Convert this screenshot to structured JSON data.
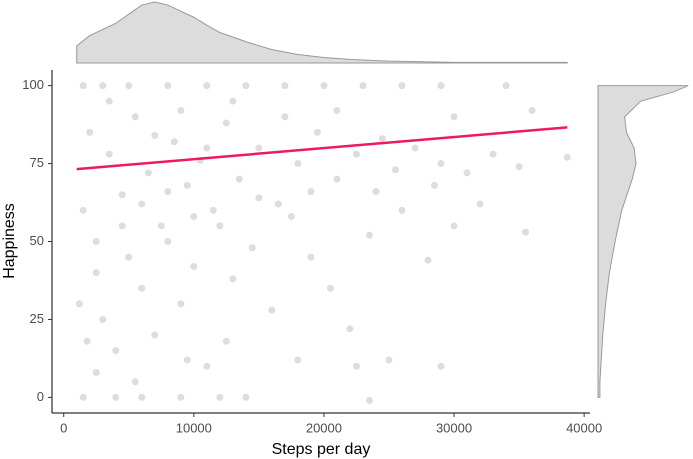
{
  "chart_data": {
    "type": "scatter",
    "xlabel": "Steps per day",
    "ylabel": "Happiness",
    "xlim": [
      -900,
      40450
    ],
    "ylim": [
      -5,
      105
    ],
    "xticks": [
      0,
      10000,
      20000,
      30000,
      40000
    ],
    "yticks": [
      0,
      25,
      50,
      75,
      100
    ],
    "point_color": "#cfcfcf",
    "x": [
      1500,
      3000,
      5000,
      8000,
      11000,
      14000,
      17000,
      20000,
      23000,
      26000,
      29000,
      34000,
      1500,
      4000,
      6000,
      9000,
      12000,
      14000,
      23500,
      2000,
      3500,
      4500,
      5500,
      6500,
      7500,
      8500,
      9500,
      10500,
      11500,
      12500,
      13500,
      15000,
      16500,
      18000,
      19500,
      21000,
      22500,
      24000,
      25500,
      27000,
      28500,
      30000,
      31000,
      33000,
      35000,
      36000,
      38700,
      2500,
      3000,
      4000,
      5000,
      6000,
      7000,
      8000,
      9000,
      10000,
      11000,
      12000,
      13000,
      14500,
      16000,
      17500,
      19000,
      20500,
      22000,
      23500,
      26000,
      28000,
      30000,
      35500,
      1500,
      2500,
      3500,
      4500,
      6000,
      7000,
      8000,
      9000,
      10000,
      11000,
      13000,
      15000,
      17000,
      19000,
      21000,
      24500,
      29000,
      32000,
      1200,
      1800,
      2500,
      5500,
      9500,
      12500,
      18000,
      22500,
      25000,
      29000
    ],
    "y": [
      100,
      100,
      100,
      100,
      100,
      100,
      100,
      100,
      100,
      100,
      100,
      100,
      0,
      0,
      0,
      0,
      0,
      0,
      -1,
      85,
      78,
      65,
      90,
      72,
      55,
      82,
      68,
      76,
      60,
      88,
      70,
      80,
      62,
      75,
      85,
      70,
      78,
      66,
      73,
      80,
      68,
      90,
      72,
      78,
      74,
      92,
      77,
      40,
      25,
      15,
      45,
      35,
      20,
      50,
      30,
      42,
      10,
      55,
      38,
      48,
      28,
      58,
      45,
      35,
      22,
      52,
      60,
      44,
      55,
      53,
      60,
      50,
      95,
      55,
      62,
      84,
      66,
      92,
      58,
      80,
      95,
      64,
      90,
      66,
      92,
      83,
      75,
      62,
      30,
      18,
      8,
      5,
      12,
      18,
      12,
      10,
      12,
      10
    ],
    "trend": {
      "color": "#ee1a5a",
      "x": [
        1000,
        38700
      ],
      "y": [
        73.2,
        86.6
      ]
    },
    "marginal_color": "#dcdcdc",
    "marginal_x": {
      "x": [
        1000,
        2000,
        3000,
        4000,
        5000,
        6000,
        7000,
        8000,
        9000,
        10000,
        11000,
        12000,
        14000,
        16000,
        18000,
        20000,
        22000,
        25000,
        30000,
        38700
      ],
      "density": [
        0.28,
        0.45,
        0.55,
        0.65,
        0.8,
        0.95,
        1.0,
        0.95,
        0.85,
        0.75,
        0.62,
        0.5,
        0.35,
        0.22,
        0.14,
        0.09,
        0.06,
        0.03,
        0.01,
        0.01
      ]
    },
    "marginal_y": {
      "y": [
        0,
        5,
        10,
        20,
        30,
        40,
        50,
        60,
        70,
        75,
        80,
        85,
        90,
        95,
        98,
        100
      ],
      "density": [
        0.02,
        0.02,
        0.03,
        0.05,
        0.08,
        0.12,
        0.18,
        0.25,
        0.36,
        0.4,
        0.38,
        0.3,
        0.28,
        0.45,
        0.8,
        0.95
      ]
    }
  }
}
